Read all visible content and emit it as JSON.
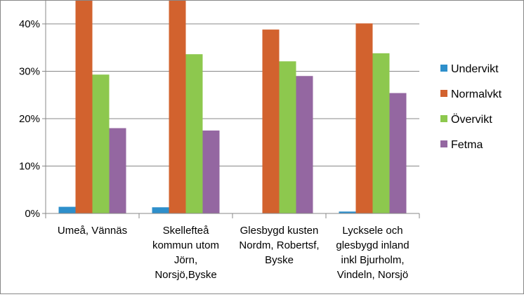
{
  "chart_data": {
    "type": "bar",
    "title": "",
    "xlabel": "",
    "ylabel": "",
    "ylim": [
      0,
      0.45
    ],
    "yticks": [
      "0%",
      "10%",
      "20%",
      "30%",
      "40%"
    ],
    "grid": true,
    "legend_position": "right",
    "categories": [
      [
        "Umeå, Vännäs"
      ],
      [
        "Skellefteå",
        "kommun utom",
        "Jörn,",
        "Norsjö,Byske"
      ],
      [
        "Glesbygd kusten",
        "Nordm, Robertsf,",
        "Byske"
      ],
      [
        "Lycksele och",
        "glesbygd inland",
        "inkl Bjurholm,",
        "Vindeln, Norsjö"
      ]
    ],
    "series": [
      {
        "name": "Undervikt",
        "color": "#2E8FCB",
        "values": [
          0.014,
          0.013,
          0.0,
          0.004
        ]
      },
      {
        "name": "Normalvkt",
        "color": "#D2622E",
        "values": [
          0.47,
          0.47,
          0.388,
          0.401
        ]
      },
      {
        "name": "Övervikt",
        "color": "#8DC84E",
        "values": [
          0.293,
          0.336,
          0.321,
          0.338
        ]
      },
      {
        "name": "Fetma",
        "color": "#9467A1",
        "values": [
          0.18,
          0.175,
          0.29,
          0.254
        ]
      }
    ]
  }
}
